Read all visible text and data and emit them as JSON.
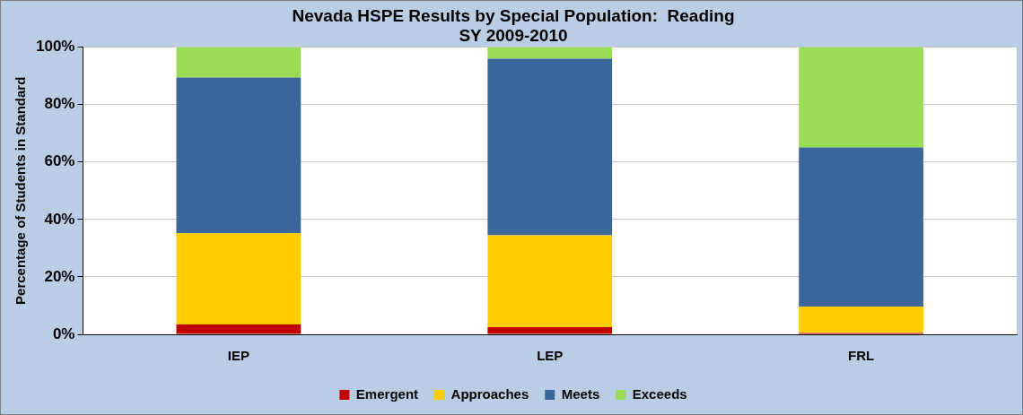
{
  "chart_data": {
    "type": "bar",
    "title": "Nevada HSPE Results by Special Population:  Reading",
    "subtitle": "SY 2009-2010",
    "ylabel": "Percentage of Students in Standard",
    "categories": [
      "IEP",
      "LEP",
      "FRL"
    ],
    "stacked": true,
    "ylim": [
      0,
      100
    ],
    "yticks": [
      {
        "value": 0,
        "label": "0%"
      },
      {
        "value": 20,
        "label": "20%"
      },
      {
        "value": 40,
        "label": "40%"
      },
      {
        "value": 60,
        "label": "60%"
      },
      {
        "value": 80,
        "label": "80%"
      },
      {
        "value": 100,
        "label": "100%"
      }
    ],
    "grid": "y",
    "legend": "bottom",
    "series": [
      {
        "name": "Emergent",
        "color": "#c00000",
        "values": [
          3.4,
          2.5,
          0.5
        ]
      },
      {
        "name": "Approaches",
        "color": "#ffcc00",
        "values": [
          31.8,
          32,
          9.2
        ]
      },
      {
        "name": "Meets",
        "color": "#3b6699",
        "values": [
          54.2,
          61.5,
          55.4
        ]
      },
      {
        "name": "Exceeds",
        "color": "#99dd55",
        "values": [
          10.6,
          4,
          34.9
        ]
      }
    ]
  }
}
